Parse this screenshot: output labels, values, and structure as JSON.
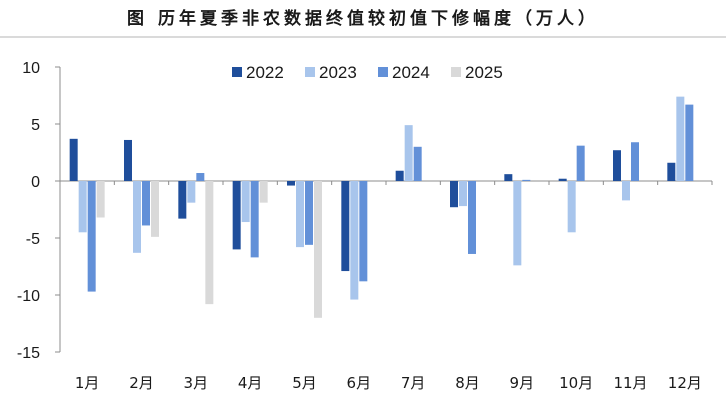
{
  "chart_data": {
    "type": "bar",
    "title": "图 历年夏季非农数据终值较初值下修幅度（万人）",
    "categories": [
      "1月",
      "2月",
      "3月",
      "4月",
      "5月",
      "6月",
      "7月",
      "8月",
      "9月",
      "10月",
      "11月",
      "12月"
    ],
    "series": [
      {
        "name": "2022",
        "color": "#1f4e9b",
        "values": [
          3.7,
          3.6,
          -3.3,
          -6.0,
          -0.4,
          -7.9,
          0.9,
          -2.3,
          0.6,
          0.2,
          2.7,
          1.6
        ]
      },
      {
        "name": "2023",
        "color": "#a8c5ec",
        "values": [
          -4.5,
          -6.3,
          -1.9,
          -3.6,
          -5.8,
          -10.4,
          4.9,
          -2.2,
          -7.4,
          -4.5,
          -1.7,
          7.4
        ]
      },
      {
        "name": "2024",
        "color": "#6290d8",
        "values": [
          -9.7,
          -3.9,
          0.7,
          -6.7,
          -5.6,
          -8.8,
          3.0,
          -6.4,
          0.1,
          3.1,
          3.4,
          6.7
        ]
      },
      {
        "name": "2025",
        "color": "#d9d9d9",
        "values": [
          -3.2,
          -4.9,
          -10.8,
          -1.9,
          -12.0,
          null,
          null,
          null,
          null,
          null,
          null,
          null
        ]
      }
    ],
    "ylim": [
      -15,
      10
    ],
    "yticks": [
      10,
      5,
      0,
      -5,
      -10,
      -15
    ],
    "grid": false,
    "legend": "top-center"
  }
}
